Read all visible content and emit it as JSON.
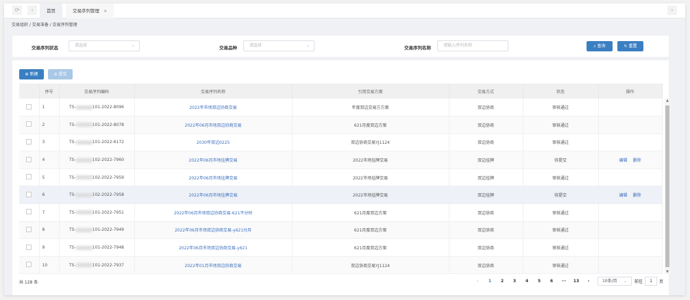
{
  "tabs": {
    "home": "首页",
    "current": "交易序列管理"
  },
  "breadcrumb": "交易组织 / 交易准备 / 交易序列管理",
  "filters": {
    "status_label": "交易序列状态",
    "status_placeholder": "请选择",
    "variety_label": "交易品种",
    "variety_placeholder": "请选择",
    "name_label": "交易序列名称",
    "name_placeholder": "请输入序列名称",
    "query": "查询",
    "reset": "重置"
  },
  "toolbar": {
    "new": "新建",
    "submit": "提交"
  },
  "table": {
    "headers": [
      "序号",
      "交易序列编码",
      "交易序列名称",
      "引用交易方案",
      "交易方式",
      "状态",
      "操作"
    ],
    "rows": [
      {
        "no": "1",
        "code_prefix": "TS-",
        "code": "101-2022-8096",
        "name": "2022年市场双边协商交易",
        "plan": "年度双边交易方方案",
        "mode": "双边协商",
        "status": "审核通过",
        "ops": []
      },
      {
        "no": "2",
        "code_prefix": "TS-",
        "code": "101-2022-8078",
        "name": "2022年06月市场双边协商交易",
        "plan": "621月度双边方案",
        "mode": "双边协商",
        "status": "审核通过",
        "ops": []
      },
      {
        "no": "3",
        "code_prefix": "TS-",
        "code": "101-2022-6172",
        "name": "2030年双边0225",
        "plan": "双边协商交易YJ1124",
        "mode": "双边协商",
        "status": "审核通过",
        "ops": []
      },
      {
        "no": "4",
        "code_prefix": "TS-",
        "code": "102-2022-7960",
        "name": "2022年06月市场挂牌交易",
        "plan": "2022市场挂牌交易",
        "mode": "双边挂牌",
        "status": "待提交",
        "ops": [
          "编辑",
          "删除"
        ]
      },
      {
        "no": "5",
        "code_prefix": "TS-",
        "code": "102-2022-7959",
        "name": "2022年06月市场挂牌交易",
        "plan": "2022市场挂牌交易",
        "mode": "双边挂牌",
        "status": "审核通过",
        "ops": []
      },
      {
        "no": "6",
        "code_prefix": "TS-",
        "code": "102-2022-7958",
        "name": "2022年06月市场挂牌交易",
        "plan": "2022市场挂牌交易",
        "mode": "双边挂牌",
        "status": "待提交",
        "ops": [
          "编辑",
          "删除"
        ]
      },
      {
        "no": "7",
        "code_prefix": "TS-",
        "code": "101-2022-7951",
        "name": "2022年06月市场双边协商交易-621不分时",
        "plan": "621月度双边方案",
        "mode": "双边协商",
        "status": "审核通过",
        "ops": []
      },
      {
        "no": "8",
        "code_prefix": "TS-",
        "code": "101-2022-7949",
        "name": "2022年06月市场双边协商交易-y621分月",
        "plan": "621月度双边方案",
        "mode": "双边协商",
        "status": "审核通过",
        "ops": []
      },
      {
        "no": "9",
        "code_prefix": "TS-",
        "code": "101-2022-7948",
        "name": "2022年06月市场双边协商交易-y621",
        "plan": "621月度双边方案",
        "mode": "双边协商",
        "status": "审核通过",
        "ops": []
      },
      {
        "no": "10",
        "code_prefix": "TS-",
        "code": "101-2022-7937",
        "name": "2022年01月市场双边协商交易",
        "plan": "双边协商交易YJ1124",
        "mode": "双边协商",
        "status": "审核通过",
        "ops": []
      }
    ]
  },
  "pagination": {
    "total": "共 128 条",
    "pages": [
      "1",
      "2",
      "3",
      "4",
      "5",
      "6",
      "···",
      "13"
    ],
    "current": "1",
    "page_size": "10条/页",
    "goto_label": "前往",
    "goto_value": "1",
    "goto_suffix": "页"
  },
  "colors": {
    "primary": "#3a7fc1",
    "link": "#3a6fc0"
  }
}
